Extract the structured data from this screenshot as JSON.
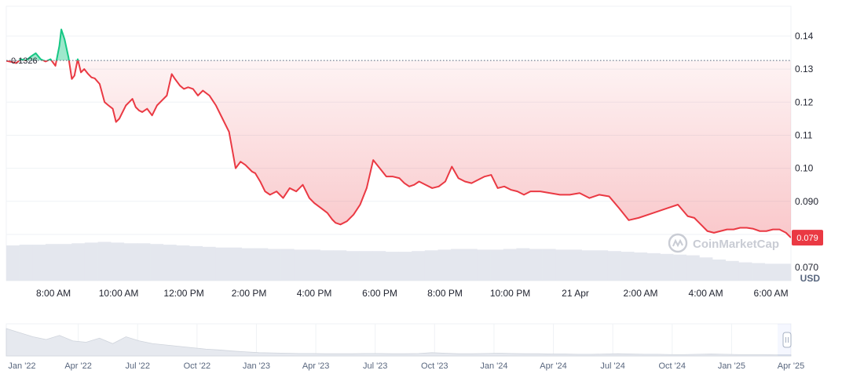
{
  "chart_data": {
    "type": "line",
    "currency": "USD",
    "watermark": "CoinMarketCap",
    "reference_price": 0.1326,
    "reference_label": "0.1326",
    "current_price": 0.079,
    "current_label": "0.079",
    "ylim": [
      0.066,
      0.149
    ],
    "y_ticks": [
      {
        "value": 0.14,
        "label": "0.14"
      },
      {
        "value": 0.13,
        "label": "0.13"
      },
      {
        "value": 0.12,
        "label": "0.12"
      },
      {
        "value": 0.11,
        "label": "0.11"
      },
      {
        "value": 0.1,
        "label": "0.10"
      },
      {
        "value": 0.09,
        "label": "0.090"
      },
      {
        "value": 0.08,
        "label": ""
      },
      {
        "value": 0.07,
        "label": "0.070"
      }
    ],
    "x_labels": [
      "8:00 AM",
      "10:00 AM",
      "12:00 PM",
      "2:00 PM",
      "4:00 PM",
      "6:00 PM",
      "8:00 PM",
      "10:00 PM",
      "21 Apr",
      "2:00 AM",
      "4:00 AM",
      "6:00 AM"
    ],
    "x_label_hours": [
      1.44,
      3.43,
      5.42,
      7.41,
      9.4,
      11.4,
      13.39,
      15.38,
      17.37,
      19.36,
      21.35,
      23.34
    ],
    "x_range_hours": [
      0,
      23.95
    ],
    "series": [
      {
        "x": [
          0.0,
          0.15,
          0.3,
          0.45,
          0.6,
          0.75,
          0.9,
          1.05,
          1.2,
          1.35,
          1.5,
          1.62,
          1.68,
          1.78,
          1.9,
          2.0,
          2.08,
          2.18,
          2.28,
          2.38,
          2.5,
          2.6,
          2.7,
          2.85,
          3.0,
          3.12,
          3.25,
          3.35,
          3.45,
          3.55,
          3.65,
          3.75,
          3.85,
          3.95,
          4.05,
          4.15,
          4.3,
          4.45,
          4.6,
          4.75,
          4.9,
          5.05,
          5.15,
          5.3,
          5.42,
          5.55,
          5.7,
          5.85,
          6.0,
          6.2,
          6.4,
          6.6,
          6.8,
          7.0,
          7.15,
          7.3,
          7.4,
          7.5,
          7.6,
          7.75,
          7.9,
          8.05,
          8.25,
          8.45,
          8.65,
          8.85,
          9.05,
          9.25,
          9.4,
          9.6,
          9.8,
          9.95,
          10.05,
          10.2,
          10.4,
          10.6,
          10.8,
          11.0,
          11.2,
          11.4,
          11.6,
          11.8,
          12.0,
          12.15,
          12.3,
          12.45,
          12.6,
          12.8,
          13.0,
          13.2,
          13.4,
          13.6,
          13.8,
          14.0,
          14.2,
          14.4,
          14.6,
          14.8,
          15.0,
          15.2,
          15.4,
          15.6,
          15.8,
          16.0,
          16.3,
          16.6,
          16.9,
          17.2,
          17.5,
          17.8,
          18.1,
          18.4,
          18.7,
          19.0,
          19.3,
          19.6,
          19.9,
          20.2,
          20.5,
          20.8,
          21.0,
          21.2,
          21.4,
          21.6,
          21.8,
          22.0,
          22.2,
          22.4,
          22.6,
          22.8,
          23.0,
          23.2,
          23.4,
          23.6,
          23.8,
          23.95
        ],
        "values": [
          0.1325,
          0.1322,
          0.1318,
          0.133,
          0.1326,
          0.1338,
          0.1348,
          0.133,
          0.1323,
          0.133,
          0.131,
          0.137,
          0.142,
          0.139,
          0.1335,
          0.127,
          0.128,
          0.133,
          0.129,
          0.13,
          0.1285,
          0.1275,
          0.1272,
          0.1255,
          0.12,
          0.119,
          0.118,
          0.114,
          0.115,
          0.117,
          0.119,
          0.12,
          0.121,
          0.1185,
          0.1175,
          0.117,
          0.118,
          0.116,
          0.119,
          0.1205,
          0.122,
          0.1285,
          0.127,
          0.125,
          0.124,
          0.1245,
          0.124,
          0.122,
          0.1235,
          0.122,
          0.119,
          0.115,
          0.111,
          0.1,
          0.102,
          0.101,
          0.1,
          0.099,
          0.0985,
          0.096,
          0.093,
          0.092,
          0.093,
          0.091,
          0.094,
          0.093,
          0.095,
          0.091,
          0.0895,
          0.088,
          0.0865,
          0.0845,
          0.0835,
          0.083,
          0.084,
          0.086,
          0.089,
          0.094,
          0.1025,
          0.1,
          0.0975,
          0.0975,
          0.097,
          0.0955,
          0.0945,
          0.095,
          0.096,
          0.095,
          0.094,
          0.0945,
          0.096,
          0.1005,
          0.097,
          0.096,
          0.0955,
          0.0965,
          0.0975,
          0.098,
          0.094,
          0.0945,
          0.0935,
          0.093,
          0.092,
          0.093,
          0.093,
          0.0925,
          0.092,
          0.092,
          0.0925,
          0.091,
          0.092,
          0.0915,
          0.088,
          0.0843,
          0.085,
          0.086,
          0.087,
          0.088,
          0.089,
          0.0855,
          0.085,
          0.083,
          0.081,
          0.0805,
          0.081,
          0.0815,
          0.0815,
          0.082,
          0.082,
          0.0817,
          0.081,
          0.081,
          0.0815,
          0.0815,
          0.0805,
          0.079
        ]
      }
    ],
    "volume": [
      0.5,
      0.51,
      0.51,
      0.52,
      0.52,
      0.53,
      0.54,
      0.55,
      0.54,
      0.53,
      0.53,
      0.52,
      0.51,
      0.5,
      0.49,
      0.48,
      0.47,
      0.47,
      0.46,
      0.46,
      0.45,
      0.45,
      0.44,
      0.44,
      0.43,
      0.43,
      0.42,
      0.42,
      0.42,
      0.41,
      0.41,
      0.42,
      0.43,
      0.44,
      0.45,
      0.45,
      0.44,
      0.44,
      0.45,
      0.46,
      0.45,
      0.45,
      0.44,
      0.44,
      0.43,
      0.43,
      0.42,
      0.41,
      0.4,
      0.39,
      0.38,
      0.37,
      0.36,
      0.33,
      0.3,
      0.28,
      0.26,
      0.25,
      0.24,
      0.24
    ],
    "navigator": {
      "labels": [
        "Jan '22",
        "Apr '22",
        "Jul '22",
        "Oct '22",
        "Jan '23",
        "Apr '23",
        "Jul '23",
        "Oct '23",
        "Jan '24",
        "Apr '24",
        "Jul '24",
        "Oct '24",
        "Jan '25",
        "Apr '25"
      ],
      "values": [
        1.0,
        0.85,
        0.7,
        0.6,
        0.75,
        0.55,
        0.5,
        0.65,
        0.45,
        0.7,
        0.55,
        0.45,
        0.4,
        0.35,
        0.3,
        0.25,
        0.22,
        0.18,
        0.15,
        0.12,
        0.11,
        0.1,
        0.09,
        0.09,
        0.08,
        0.08,
        0.08,
        0.09,
        0.09,
        0.08,
        0.08,
        0.09,
        0.12,
        0.1,
        0.08,
        0.08,
        0.09,
        0.1,
        0.09,
        0.08,
        0.08,
        0.07,
        0.07,
        0.06,
        0.06,
        0.07,
        0.08,
        0.07,
        0.06,
        0.06,
        0.05,
        0.05,
        0.06,
        0.07,
        0.06,
        0.05,
        0.05,
        0.05,
        0.04,
        0.04
      ]
    },
    "colors": {
      "down": "#ea3943",
      "up": "#16c784",
      "text": "#222531",
      "grid": "#eff2f5",
      "volume": "#e4e7ee",
      "watermark": "#c9ccd4"
    }
  }
}
